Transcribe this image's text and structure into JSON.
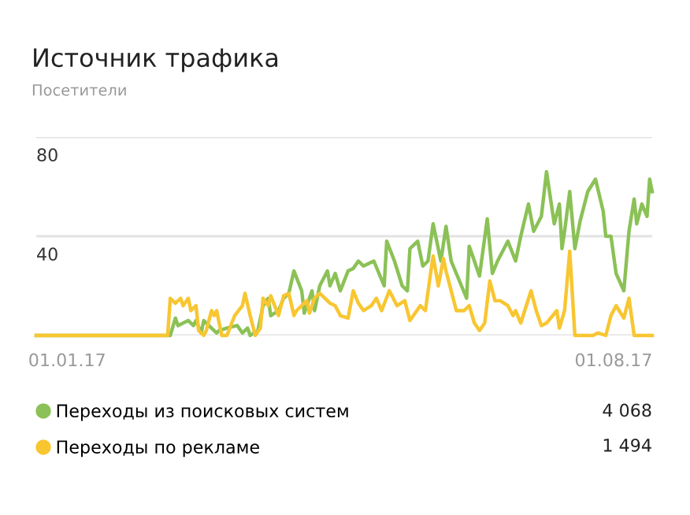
{
  "chart_data": {
    "type": "line",
    "title": "Источник трафика",
    "subtitle": "Посетители",
    "xlim": [
      "2016-12-20",
      "2017-08-16"
    ],
    "xticks": [
      {
        "value": "2017-01-01",
        "label": "01.01.17"
      },
      {
        "value": "2017-08-01",
        "label": "01.08.17"
      }
    ],
    "ylim": [
      0,
      80
    ],
    "yticks": [
      {
        "value": 0,
        "label": null
      },
      40,
      80
    ],
    "grid": "y",
    "legend": "bottom",
    "marker": "none",
    "line_style": "solid",
    "annotations": [
      "4 068",
      "1 494"
    ],
    "series": [
      {
        "name": "Переходы из поисковых систем",
        "color": "#8bc156",
        "x": [
          "2016-12-20",
          "2017-02-10",
          "2017-02-12",
          "2017-02-13",
          "2017-02-17",
          "2017-02-19",
          "2017-02-20",
          "2017-02-22",
          "2017-02-23",
          "2017-02-26",
          "2017-02-28",
          "2017-03-01",
          "2017-03-04",
          "2017-03-08",
          "2017-03-10",
          "2017-03-12",
          "2017-03-13",
          "2017-03-16",
          "2017-03-18",
          "2017-03-20",
          "2017-03-21",
          "2017-03-24",
          "2017-03-26",
          "2017-03-28",
          "2017-03-30",
          "2017-04-02",
          "2017-04-03",
          "2017-04-06",
          "2017-04-07",
          "2017-04-09",
          "2017-04-12",
          "2017-04-13",
          "2017-04-15",
          "2017-04-17",
          "2017-04-20",
          "2017-04-22",
          "2017-04-24",
          "2017-04-26",
          "2017-04-30",
          "2017-05-02",
          "2017-05-04",
          "2017-05-05",
          "2017-05-08",
          "2017-05-11",
          "2017-05-13",
          "2017-05-14",
          "2017-05-17",
          "2017-05-19",
          "2017-05-21",
          "2017-05-23",
          "2017-05-26",
          "2017-05-28",
          "2017-05-30",
          "2017-06-03",
          "2017-06-05",
          "2017-06-06",
          "2017-06-08",
          "2017-06-10",
          "2017-06-13",
          "2017-06-15",
          "2017-06-17",
          "2017-06-21",
          "2017-06-24",
          "2017-06-26",
          "2017-06-29",
          "2017-07-01",
          "2017-07-04",
          "2017-07-06",
          "2017-07-09",
          "2017-07-11",
          "2017-07-12",
          "2017-07-13",
          "2017-07-15",
          "2017-07-17",
          "2017-07-19",
          "2017-07-22",
          "2017-07-25",
          "2017-07-28",
          "2017-07-29",
          "2017-07-31",
          "2017-08-02",
          "2017-08-05",
          "2017-08-07",
          "2017-08-09",
          "2017-08-10",
          "2017-08-12",
          "2017-08-14",
          "2017-08-15",
          "2017-08-16"
        ],
        "values": [
          0,
          0,
          7,
          4,
          6,
          4,
          6,
          1,
          6,
          3,
          1,
          2,
          3,
          4,
          1,
          3,
          0,
          2,
          12,
          15,
          8,
          10,
          15,
          17,
          26,
          18,
          9,
          18,
          10,
          20,
          26,
          20,
          25,
          18,
          26,
          27,
          30,
          28,
          30,
          25,
          20,
          38,
          30,
          20,
          18,
          35,
          38,
          28,
          30,
          45,
          30,
          44,
          30,
          20,
          15,
          36,
          30,
          24,
          47,
          25,
          30,
          38,
          30,
          40,
          53,
          42,
          48,
          66,
          45,
          53,
          35,
          42,
          58,
          35,
          46,
          58,
          63,
          50,
          40,
          40,
          25,
          18,
          42,
          55,
          45,
          53,
          48,
          63,
          58
        ]
      },
      {
        "name": "Переходы по рекламе",
        "color": "#f8c631",
        "x": [
          "2016-12-20",
          "2017-02-09",
          "2017-02-10",
          "2017-02-12",
          "2017-02-14",
          "2017-02-15",
          "2017-02-17",
          "2017-02-18",
          "2017-02-20",
          "2017-02-21",
          "2017-02-23",
          "2017-02-24",
          "2017-02-26",
          "2017-02-27",
          "2017-02-28",
          "2017-03-02",
          "2017-03-04",
          "2017-03-07",
          "2017-03-10",
          "2017-03-11",
          "2017-03-13",
          "2017-03-15",
          "2017-03-17",
          "2017-03-18",
          "2017-03-20",
          "2017-03-21",
          "2017-03-24",
          "2017-03-26",
          "2017-03-28",
          "2017-03-30",
          "2017-03-31",
          "2017-04-04",
          "2017-04-05",
          "2017-04-07",
          "2017-04-09",
          "2017-04-12",
          "2017-04-13",
          "2017-04-15",
          "2017-04-17",
          "2017-04-20",
          "2017-04-22",
          "2017-04-24",
          "2017-04-26",
          "2017-04-29",
          "2017-05-01",
          "2017-05-03",
          "2017-05-06",
          "2017-05-09",
          "2017-05-12",
          "2017-05-14",
          "2017-05-18",
          "2017-05-20",
          "2017-05-22",
          "2017-05-23",
          "2017-05-25",
          "2017-05-27",
          "2017-05-28",
          "2017-05-30",
          "2017-06-01",
          "2017-06-04",
          "2017-06-06",
          "2017-06-08",
          "2017-06-10",
          "2017-06-12",
          "2017-06-14",
          "2017-06-16",
          "2017-06-18",
          "2017-06-21",
          "2017-06-23",
          "2017-06-24",
          "2017-06-26",
          "2017-06-30",
          "2017-07-02",
          "2017-07-04",
          "2017-07-06",
          "2017-07-10",
          "2017-07-11",
          "2017-07-13",
          "2017-07-15",
          "2017-07-17",
          "2017-07-24",
          "2017-07-26",
          "2017-07-29",
          "2017-07-31",
          "2017-08-02",
          "2017-08-05",
          "2017-08-07",
          "2017-08-09",
          "2017-08-16"
        ],
        "values": [
          0,
          0,
          15,
          13,
          15,
          12,
          15,
          10,
          12,
          2,
          0,
          2,
          10,
          8,
          10,
          0,
          0,
          8,
          12,
          17,
          8,
          0,
          3,
          15,
          12,
          16,
          8,
          16,
          17,
          8,
          10,
          14,
          9,
          15,
          17,
          14,
          13,
          12,
          8,
          7,
          18,
          13,
          10,
          12,
          15,
          10,
          18,
          12,
          14,
          6,
          12,
          10,
          25,
          32,
          20,
          31,
          26,
          18,
          10,
          10,
          12,
          5,
          2,
          5,
          22,
          14,
          14,
          12,
          8,
          10,
          5,
          18,
          10,
          4,
          5,
          10,
          3,
          10,
          34,
          0,
          0,
          1,
          0,
          8,
          12,
          7,
          15,
          0,
          0
        ]
      }
    ]
  }
}
